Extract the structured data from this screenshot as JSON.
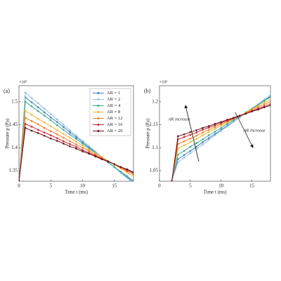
{
  "chart_data": [
    {
      "type": "line",
      "panel_label": "(a)",
      "x_label": "Time t (ms)",
      "y_label": "Pressure p (Pa)",
      "y_multiplier": "×10⁵",
      "xlim": [
        0,
        18
      ],
      "xticks": [
        0,
        5,
        10,
        15
      ],
      "ylim": [
        1.327,
        1.535
      ],
      "yticks": [
        1.35,
        1.4,
        1.45,
        1.5
      ],
      "legend": "upper right",
      "x": [
        0,
        1,
        2,
        3,
        4,
        5,
        6,
        7,
        8,
        9,
        10,
        11,
        12,
        13,
        14,
        15,
        16,
        17,
        18
      ],
      "series": [
        {
          "name": "AR = 1",
          "color": "#3f7fc0",
          "values": [
            1.327,
            1.51,
            1.499,
            1.488,
            1.477,
            1.466,
            1.456,
            1.445,
            1.434,
            1.423,
            1.412,
            1.401,
            1.39,
            1.379,
            1.368,
            1.358,
            1.347,
            1.336,
            1.325
          ]
        },
        {
          "name": "AR = 2",
          "color": "#8ec3e8",
          "values": [
            1.327,
            1.52,
            1.508,
            1.497,
            1.485,
            1.473,
            1.462,
            1.45,
            1.438,
            1.427,
            1.415,
            1.404,
            1.392,
            1.38,
            1.369,
            1.357,
            1.345,
            1.334,
            1.322
          ]
        },
        {
          "name": "AR = 4",
          "color": "#3aa98c",
          "values": [
            1.327,
            1.5,
            1.49,
            1.48,
            1.47,
            1.46,
            1.449,
            1.439,
            1.429,
            1.419,
            1.409,
            1.399,
            1.389,
            1.379,
            1.368,
            1.358,
            1.348,
            1.338,
            1.328
          ]
        },
        {
          "name": "AR = 8",
          "color": "#f2b535",
          "values": [
            1.327,
            1.48,
            1.472,
            1.463,
            1.455,
            1.447,
            1.438,
            1.43,
            1.422,
            1.413,
            1.405,
            1.396,
            1.388,
            1.38,
            1.371,
            1.363,
            1.355,
            1.346,
            1.338
          ]
        },
        {
          "name": "AR = 12",
          "color": "#ef7c26",
          "values": [
            1.327,
            1.465,
            1.458,
            1.451,
            1.443,
            1.436,
            1.429,
            1.422,
            1.414,
            1.407,
            1.4,
            1.393,
            1.385,
            1.378,
            1.371,
            1.364,
            1.356,
            1.349,
            1.342
          ]
        },
        {
          "name": "AR = 16",
          "color": "#c62530",
          "values": [
            1.327,
            1.452,
            1.446,
            1.439,
            1.433,
            1.427,
            1.421,
            1.414,
            1.408,
            1.402,
            1.395,
            1.389,
            1.383,
            1.376,
            1.37,
            1.364,
            1.358,
            1.351,
            1.345
          ]
        },
        {
          "name": "AR = 20",
          "color": "#6a0f1c",
          "values": [
            1.327,
            1.443,
            1.437,
            1.432,
            1.426,
            1.42,
            1.415,
            1.409,
            1.403,
            1.398,
            1.392,
            1.387,
            1.381,
            1.375,
            1.37,
            1.364,
            1.358,
            1.353,
            1.347
          ]
        }
      ]
    },
    {
      "type": "line",
      "panel_label": "(b)",
      "x_label": "Time t (ms)",
      "y_label": "Pressure p (Pa)",
      "y_multiplier": "×10⁵",
      "xlim": [
        0,
        18
      ],
      "xticks": [
        0,
        5,
        10,
        15
      ],
      "ylim": [
        1.027,
        1.235
      ],
      "yticks": [
        1.05,
        1.1,
        1.15,
        1.2
      ],
      "annotations": [
        "AR increase",
        "AR increase"
      ],
      "x": [
        2,
        3,
        4,
        5,
        6,
        7,
        8,
        9,
        10,
        11,
        12,
        13,
        14,
        15,
        16,
        17,
        18
      ],
      "series": [
        {
          "color": "#3f7fc0",
          "values": [
            1.027,
            1.075,
            1.084,
            1.093,
            1.102,
            1.112,
            1.121,
            1.13,
            1.139,
            1.148,
            1.157,
            1.166,
            1.176,
            1.185,
            1.194,
            1.203,
            1.212
          ]
        },
        {
          "color": "#8ec3e8",
          "values": [
            1.027,
            1.068,
            1.078,
            1.088,
            1.097,
            1.107,
            1.117,
            1.127,
            1.137,
            1.146,
            1.156,
            1.166,
            1.176,
            1.186,
            1.195,
            1.205,
            1.215
          ]
        },
        {
          "color": "#3aa98c",
          "values": [
            1.027,
            1.085,
            1.093,
            1.102,
            1.11,
            1.118,
            1.127,
            1.135,
            1.143,
            1.152,
            1.16,
            1.168,
            1.177,
            1.185,
            1.193,
            1.202,
            1.21
          ]
        },
        {
          "color": "#f2b535",
          "values": [
            1.027,
            1.098,
            1.105,
            1.112,
            1.119,
            1.127,
            1.134,
            1.141,
            1.148,
            1.155,
            1.162,
            1.169,
            1.176,
            1.184,
            1.191,
            1.198,
            1.205
          ]
        },
        {
          "color": "#ef7c26",
          "values": [
            1.027,
            1.108,
            1.114,
            1.12,
            1.126,
            1.133,
            1.139,
            1.145,
            1.151,
            1.157,
            1.163,
            1.169,
            1.175,
            1.182,
            1.188,
            1.194,
            1.2
          ]
        },
        {
          "color": "#c62530",
          "values": [
            1.027,
            1.118,
            1.123,
            1.128,
            1.133,
            1.139,
            1.144,
            1.149,
            1.154,
            1.159,
            1.164,
            1.169,
            1.174,
            1.18,
            1.185,
            1.19,
            1.195
          ]
        },
        {
          "color": "#6a0f1c",
          "values": [
            1.027,
            1.125,
            1.129,
            1.134,
            1.138,
            1.143,
            1.147,
            1.152,
            1.156,
            1.161,
            1.165,
            1.17,
            1.174,
            1.179,
            1.183,
            1.188,
            1.192
          ]
        }
      ]
    }
  ]
}
